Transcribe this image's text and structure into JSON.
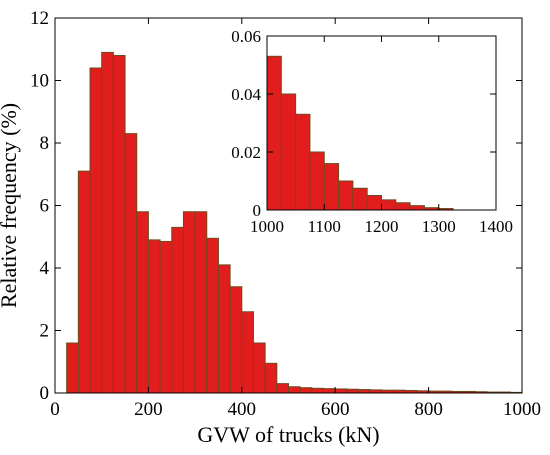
{
  "chart_data": [
    {
      "type": "bar",
      "xlabel": "GVW of trucks (kN)",
      "ylabel": "Relative frequency (%)",
      "xlim": [
        0,
        1000
      ],
      "ylim": [
        0,
        12
      ],
      "x_ticks": [
        0,
        200,
        400,
        600,
        800,
        1000
      ],
      "y_ticks": [
        0,
        2,
        4,
        6,
        8,
        10,
        12
      ],
      "bin_width": 25,
      "bin_starts": [
        25,
        50,
        75,
        100,
        125,
        150,
        175,
        200,
        225,
        250,
        275,
        300,
        325,
        350,
        375,
        400,
        425,
        450,
        475,
        500,
        525,
        550,
        575,
        600,
        625,
        650,
        675,
        700,
        725,
        750,
        775,
        800,
        825,
        850,
        875,
        900,
        925,
        950,
        975
      ],
      "values": [
        1.6,
        7.1,
        10.4,
        10.9,
        10.8,
        8.3,
        5.8,
        4.9,
        4.85,
        5.3,
        5.8,
        5.8,
        4.95,
        4.1,
        3.4,
        2.6,
        1.6,
        0.95,
        0.3,
        0.2,
        0.17,
        0.15,
        0.14,
        0.13,
        0.12,
        0.11,
        0.1,
        0.09,
        0.09,
        0.08,
        0.07,
        0.06,
        0.06,
        0.05,
        0.05,
        0.04,
        0.03,
        0.03,
        0.02
      ],
      "grid": false
    },
    {
      "type": "bar",
      "xlim": [
        1000,
        1400
      ],
      "ylim": [
        0,
        0.06
      ],
      "x_ticks": [
        1000,
        1100,
        1200,
        1300,
        1400
      ],
      "y_ticks": [
        0,
        0.02,
        0.04,
        0.06
      ],
      "y_tick_labels": [
        "0",
        "0.02",
        "0.04",
        "0.06"
      ],
      "bin_width": 25,
      "bin_starts": [
        1000,
        1025,
        1050,
        1075,
        1100,
        1125,
        1150,
        1175,
        1200,
        1225,
        1250,
        1275,
        1300
      ],
      "values": [
        0.053,
        0.04,
        0.033,
        0.02,
        0.016,
        0.01,
        0.0075,
        0.005,
        0.0035,
        0.0025,
        0.0015,
        0.0008,
        0.0005
      ],
      "grid": false
    }
  ]
}
